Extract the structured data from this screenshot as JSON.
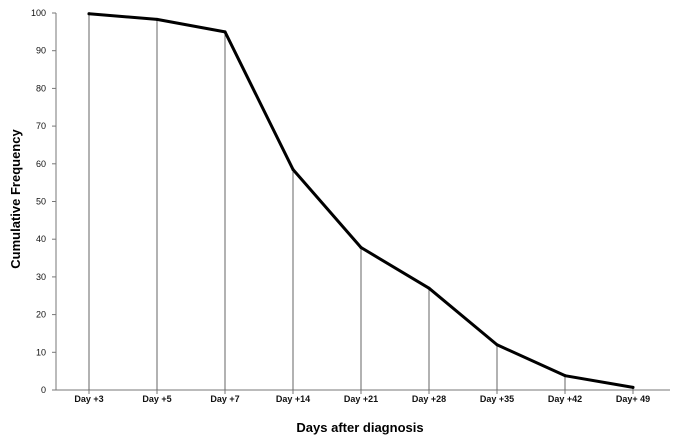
{
  "chart_data": {
    "type": "line",
    "categories": [
      "Day +3",
      "Day +5",
      "Day +7",
      "Day +14",
      "Day +21",
      "Day +28",
      "Day +35",
      "Day +42",
      "Day+ 49"
    ],
    "series": [
      {
        "values": [
          99.8,
          98.3,
          95.0,
          58.5,
          37.8,
          27.0,
          12.0,
          3.8,
          0.7
        ]
      }
    ],
    "title": "",
    "xlabel": "Days after diagnosis",
    "ylabel": "Cumulative Frequency",
    "ylim": [
      0,
      100
    ],
    "yticks": [
      0,
      10,
      20,
      30,
      40,
      50,
      60,
      70,
      80,
      90,
      100
    ],
    "drop_lines": true,
    "grid": false,
    "legend": "none",
    "line_color": "#000000",
    "drop_line_color": "#666666"
  }
}
